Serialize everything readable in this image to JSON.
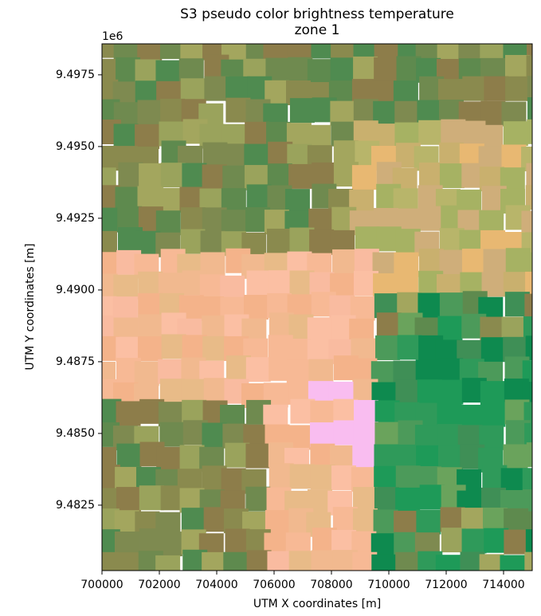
{
  "chart_data": {
    "type": "image",
    "title": [
      "S3 pseudo color brightness temperature",
      "zone 1"
    ],
    "xlabel": "UTM X coordinates [m]",
    "ylabel": "UTM Y coordinates [m]",
    "y_offset_label": "1e6",
    "xlim": [
      700000,
      715000
    ],
    "ylim": [
      9480220,
      9498580
    ],
    "xticks": [
      700000,
      702000,
      704000,
      706000,
      708000,
      710000,
      712000,
      714000
    ],
    "yticks": [
      {
        "value": 9482500,
        "label": "9.4825"
      },
      {
        "value": 9485000,
        "label": "9.4850"
      },
      {
        "value": 9487500,
        "label": "9.4875"
      },
      {
        "value": 9490000,
        "label": "9.4900"
      },
      {
        "value": 9492500,
        "label": "9.4925"
      },
      {
        "value": 9495000,
        "label": "9.4950"
      },
      {
        "value": 9497500,
        "label": "9.4975"
      }
    ]
  }
}
